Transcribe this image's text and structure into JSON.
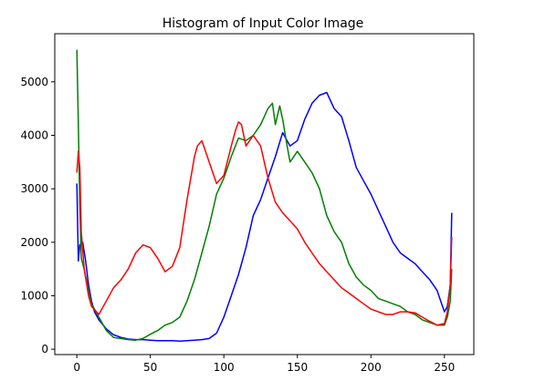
{
  "chart_data": {
    "type": "line",
    "title": "Histogram of Input Color Image",
    "xlabel": "",
    "ylabel": "",
    "xlim": [
      -15,
      270
    ],
    "ylim": [
      -100,
      5900
    ],
    "x_ticks": [
      0,
      50,
      100,
      150,
      200,
      250
    ],
    "y_ticks": [
      0,
      1000,
      2000,
      3000,
      4000,
      5000
    ],
    "grid": false,
    "legend": "none",
    "series": [
      {
        "color": "#0000ff",
        "x": [
          0,
          1,
          2,
          4,
          6,
          8,
          10,
          12,
          15,
          20,
          25,
          30,
          35,
          40,
          45,
          50,
          55,
          60,
          65,
          70,
          75,
          80,
          85,
          90,
          95,
          100,
          105,
          110,
          115,
          120,
          125,
          130,
          135,
          140,
          145,
          150,
          155,
          160,
          165,
          170,
          175,
          180,
          185,
          190,
          195,
          200,
          205,
          210,
          215,
          220,
          225,
          230,
          235,
          240,
          245,
          250,
          252,
          254,
          255
        ],
        "values": [
          3100,
          1650,
          1950,
          2000,
          1650,
          1200,
          900,
          700,
          550,
          380,
          270,
          220,
          190,
          180,
          180,
          170,
          160,
          160,
          160,
          150,
          160,
          170,
          180,
          200,
          300,
          600,
          1000,
          1400,
          1900,
          2500,
          2800,
          3200,
          3600,
          4050,
          3800,
          3900,
          4300,
          4600,
          4750,
          4800,
          4500,
          4350,
          3900,
          3400,
          3150,
          2900,
          2600,
          2300,
          2000,
          1800,
          1700,
          1600,
          1450,
          1300,
          1100,
          700,
          800,
          1200,
          2550
        ]
      },
      {
        "color": "#008000",
        "x": [
          0,
          1,
          2,
          3,
          5,
          8,
          10,
          15,
          20,
          25,
          30,
          35,
          40,
          45,
          50,
          55,
          60,
          65,
          70,
          75,
          80,
          85,
          90,
          95,
          100,
          105,
          110,
          115,
          120,
          125,
          130,
          133,
          135,
          138,
          140,
          143,
          145,
          150,
          155,
          160,
          165,
          170,
          175,
          180,
          185,
          190,
          195,
          200,
          205,
          210,
          215,
          220,
          225,
          230,
          235,
          240,
          245,
          250,
          252,
          254,
          255
        ],
        "values": [
          5600,
          4200,
          2700,
          1700,
          1500,
          1100,
          850,
          600,
          350,
          220,
          200,
          180,
          170,
          200,
          280,
          350,
          450,
          500,
          600,
          900,
          1300,
          1800,
          2300,
          2900,
          3200,
          3600,
          3950,
          3900,
          4000,
          4200,
          4500,
          4600,
          4200,
          4550,
          4300,
          3800,
          3500,
          3700,
          3500,
          3300,
          3000,
          2500,
          2200,
          2000,
          1600,
          1350,
          1200,
          1100,
          950,
          900,
          850,
          800,
          700,
          650,
          550,
          500,
          450,
          450,
          600,
          900,
          1500
        ]
      },
      {
        "color": "#ff0000",
        "x": [
          0,
          1,
          2,
          3,
          5,
          8,
          10,
          15,
          20,
          25,
          30,
          35,
          40,
          45,
          50,
          55,
          60,
          65,
          70,
          75,
          80,
          82,
          85,
          90,
          95,
          100,
          105,
          108,
          110,
          112,
          115,
          120,
          125,
          130,
          135,
          140,
          145,
          150,
          155,
          160,
          165,
          170,
          175,
          180,
          185,
          190,
          195,
          200,
          205,
          210,
          215,
          220,
          225,
          230,
          235,
          240,
          245,
          250,
          252,
          254,
          255
        ],
        "values": [
          3300,
          3700,
          3400,
          2200,
          1500,
          1000,
          800,
          650,
          900,
          1150,
          1300,
          1500,
          1800,
          1950,
          1900,
          1700,
          1450,
          1550,
          1900,
          2800,
          3600,
          3800,
          3900,
          3500,
          3100,
          3250,
          3800,
          4100,
          4250,
          4200,
          3800,
          4000,
          3800,
          3200,
          2750,
          2550,
          2400,
          2250,
          2000,
          1800,
          1600,
          1450,
          1300,
          1150,
          1050,
          950,
          850,
          750,
          700,
          650,
          650,
          700,
          700,
          680,
          600,
          520,
          450,
          480,
          700,
          1200,
          2100
        ]
      }
    ]
  }
}
